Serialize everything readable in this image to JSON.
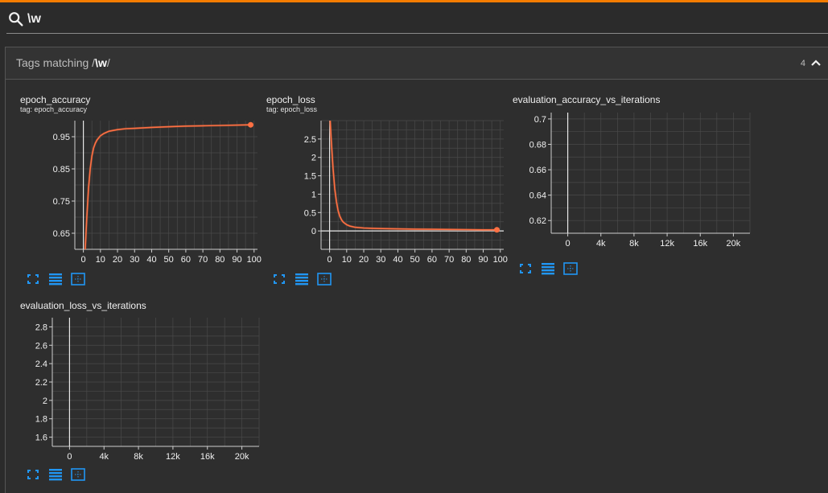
{
  "search": {
    "value": "\\w",
    "placeholder": ""
  },
  "panel": {
    "title_prefix": "Tags matching /",
    "pattern": "\\w",
    "title_suffix": "/",
    "count": "4"
  },
  "cards": [
    {
      "title": "epoch_accuracy",
      "tag": "tag: epoch_accuracy"
    },
    {
      "title": "epoch_loss",
      "tag": "tag: epoch_loss"
    },
    {
      "title": "evaluation_accuracy_vs_iterations",
      "tag": ""
    },
    {
      "title": "evaluation_loss_vs_iterations",
      "tag": ""
    }
  ],
  "colors": {
    "accent": "#f57c00",
    "series": "#ff7043",
    "icon": "#2196f3",
    "grid": "#4a4a4a"
  },
  "icons": [
    "fullscreen-icon",
    "list-icon",
    "fit-domain-icon"
  ],
  "chart_data": [
    {
      "type": "line",
      "xlim": [
        -5,
        102
      ],
      "ylim": [
        0.6,
        1.0
      ],
      "x_ticks": [
        0,
        10,
        20,
        30,
        40,
        50,
        60,
        70,
        80,
        90,
        100
      ],
      "x_tick_labels": [
        "0",
        "10",
        "20",
        "30",
        "40",
        "50",
        "60",
        "70",
        "80",
        "90",
        "100"
      ],
      "y_ticks": [
        0.65,
        0.75,
        0.85,
        0.95
      ],
      "y_tick_labels": [
        "0.65",
        "0.75",
        "0.85",
        "0.95"
      ],
      "series": [
        {
          "x": [
            1,
            2,
            3,
            4,
            5,
            6,
            7,
            8,
            10,
            12,
            15,
            20,
            25,
            30,
            40,
            50,
            60,
            70,
            80,
            90,
            98
          ],
          "y": [
            0.59,
            0.7,
            0.79,
            0.85,
            0.89,
            0.915,
            0.93,
            0.94,
            0.953,
            0.96,
            0.967,
            0.972,
            0.975,
            0.976,
            0.979,
            0.981,
            0.983,
            0.984,
            0.985,
            0.986,
            0.987
          ]
        }
      ],
      "grid": true
    },
    {
      "type": "line",
      "xlim": [
        -5,
        102
      ],
      "ylim": [
        -0.5,
        3.0
      ],
      "x_ticks": [
        0,
        10,
        20,
        30,
        40,
        50,
        60,
        70,
        80,
        90,
        100
      ],
      "x_tick_labels": [
        "0",
        "10",
        "20",
        "30",
        "40",
        "50",
        "60",
        "70",
        "80",
        "90",
        "100"
      ],
      "y_ticks": [
        0,
        0.5,
        1,
        1.5,
        2,
        2.5
      ],
      "y_tick_labels": [
        "0",
        "0.5",
        "1",
        "1.5",
        "2",
        "2.5"
      ],
      "series": [
        {
          "x": [
            0,
            1,
            2,
            3,
            4,
            5,
            6,
            7,
            8,
            10,
            12,
            15,
            20,
            25,
            30,
            40,
            50,
            60,
            70,
            80,
            90,
            98
          ],
          "y": [
            3.3,
            2.45,
            1.7,
            1.15,
            0.8,
            0.55,
            0.4,
            0.3,
            0.24,
            0.17,
            0.13,
            0.1,
            0.08,
            0.07,
            0.065,
            0.055,
            0.05,
            0.045,
            0.04,
            0.035,
            0.03,
            0.03
          ]
        }
      ],
      "grid": true
    },
    {
      "type": "line",
      "xlim": [
        -2000,
        22000
      ],
      "ylim": [
        0.61,
        0.705
      ],
      "x_ticks": [
        0,
        4000,
        8000,
        12000,
        16000,
        20000
      ],
      "x_tick_labels": [
        "0",
        "4k",
        "8k",
        "12k",
        "16k",
        "20k"
      ],
      "y_ticks": [
        0.62,
        0.64,
        0.66,
        0.68,
        0.7
      ],
      "y_tick_labels": [
        "0.62",
        "0.64",
        "0.66",
        "0.68",
        "0.7"
      ],
      "series": [],
      "grid": true
    },
    {
      "type": "line",
      "xlim": [
        -2000,
        22000
      ],
      "ylim": [
        1.5,
        2.9
      ],
      "x_ticks": [
        0,
        4000,
        8000,
        12000,
        16000,
        20000
      ],
      "x_tick_labels": [
        "0",
        "4k",
        "8k",
        "12k",
        "16k",
        "20k"
      ],
      "y_ticks": [
        1.6,
        1.8,
        2,
        2.2,
        2.4,
        2.6,
        2.8
      ],
      "y_tick_labels": [
        "1.6",
        "1.8",
        "2",
        "2.2",
        "2.4",
        "2.6",
        "2.8"
      ],
      "series": [],
      "grid": true
    }
  ]
}
